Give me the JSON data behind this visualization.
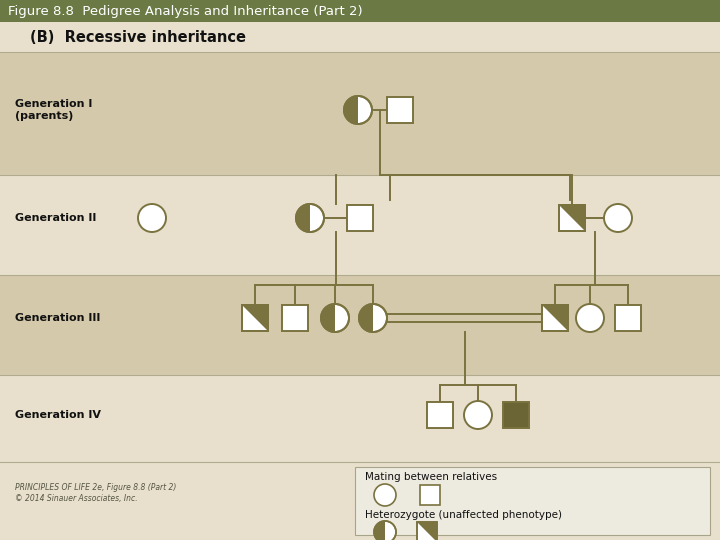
{
  "title": "Figure 8.8  Pedigree Analysis and Inheritance (Part 2)",
  "title_bg": "#6b7a45",
  "title_color": "#ffffff",
  "subtitle": "(B)  Recessive inheritance",
  "row_bg_dark": "#d4c9aa",
  "row_bg_light": "#e8e0cc",
  "legend_bg": "#edeadf",
  "olive": "#7a7340",
  "dark_olive": "#6b6535",
  "line_color": "#7a7340",
  "white": "#ffffff",
  "gen_labels": [
    "Generation I\n(parents)",
    "Generation II",
    "Generation III",
    "Generation IV"
  ],
  "footer_line1": "PRINCIPLES OF LIFE 2e, Figure 8.8 (Part 2)",
  "footer_line2": "© 2014 Sinauer Associates, Inc."
}
